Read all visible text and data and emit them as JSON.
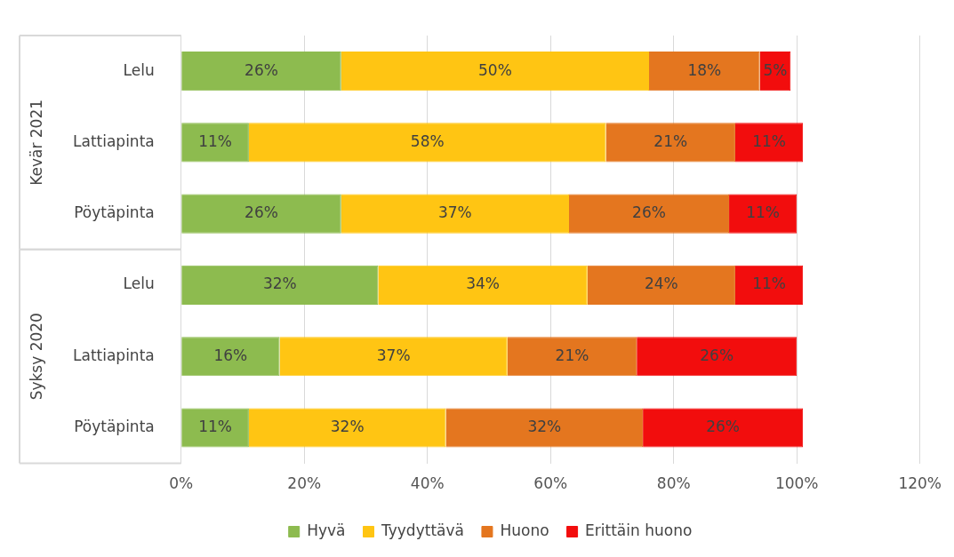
{
  "chart_data": {
    "type": "bar",
    "orientation": "horizontal",
    "stacked": true,
    "categories": [
      "Lelu",
      "Lattiapinta",
      "Pöytäpinta",
      "Lelu",
      "Lattiapinta",
      "Pöytäpinta"
    ],
    "series": [
      {
        "name": "Hyvä",
        "color": "#8dbb4f",
        "values": [
          26,
          11,
          26,
          32,
          16,
          11
        ],
        "value_labels": [
          "26%",
          "11%",
          "26%",
          "32%",
          "16%",
          "11%"
        ]
      },
      {
        "name": "Tyydyttävä",
        "color": "#ffc513",
        "values": [
          50,
          58,
          37,
          34,
          37,
          32
        ],
        "value_labels": [
          "50%",
          "58%",
          "37%",
          "34%",
          "37%",
          "32%"
        ]
      },
      {
        "name": "Huono",
        "color": "#e4761f",
        "values": [
          18,
          21,
          26,
          24,
          21,
          32
        ],
        "value_labels": [
          "18%",
          "21%",
          "26%",
          "24%",
          "21%",
          "32%"
        ]
      },
      {
        "name": "Erittäin huono",
        "color": "#f20d0d",
        "values": [
          5,
          11,
          11,
          11,
          26,
          26
        ],
        "value_labels": [
          "5%",
          "11%",
          "11%",
          "11%",
          "26%",
          "26%"
        ]
      }
    ],
    "xlim": [
      0,
      120
    ],
    "xticks": [
      {
        "value": 0,
        "label": "0%"
      },
      {
        "value": 20,
        "label": "20%"
      },
      {
        "value": 40,
        "label": "40%"
      },
      {
        "value": 60,
        "label": "60%"
      },
      {
        "value": 80,
        "label": "80%"
      },
      {
        "value": 100,
        "label": "100%"
      },
      {
        "value": 120,
        "label": "120%"
      }
    ],
    "grid": "x",
    "legend": "bottom",
    "annotations": [
      "Kevär 2021",
      "Syksy 2020"
    ]
  }
}
